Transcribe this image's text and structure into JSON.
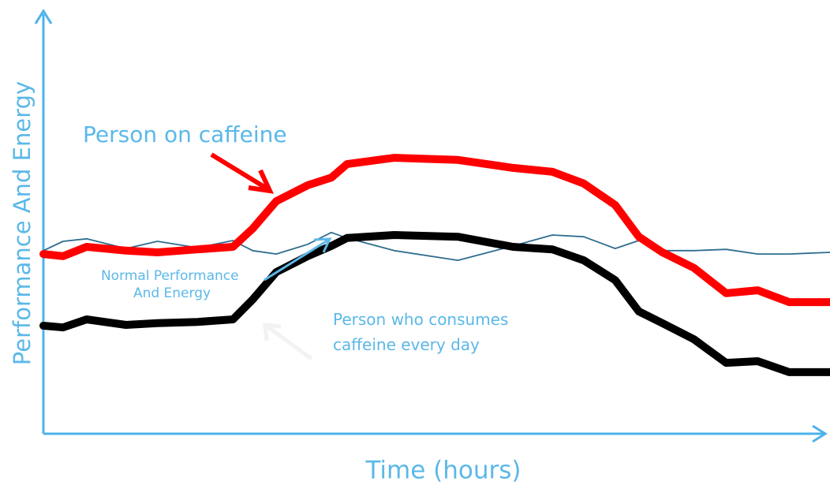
{
  "chart_data": {
    "type": "line",
    "xlabel": "Time (hours)",
    "ylabel": "Performance And Energy",
    "xlim": [
      0,
      100
    ],
    "ylim": [
      0,
      100
    ],
    "x": [
      0,
      2.5,
      5.5,
      10.5,
      14.5,
      19.6,
      24.1,
      26.6,
      29.6,
      33.6,
      36.6,
      38.6,
      44.6,
      52.7,
      59.7,
      64.7,
      68.7,
      72.7,
      75.7,
      78.7,
      82.7,
      86.8,
      90.8,
      94.8,
      100
    ],
    "series": [
      {
        "color": "#2f6d8f",
        "values": [
          43.4,
          45.6,
          46.2,
          43.9,
          45.6,
          44.1,
          45.8,
          43.4,
          42.6,
          44.9,
          47.7,
          46.4,
          43.4,
          41.1,
          44.5,
          47.1,
          46.7,
          43.9,
          45.8,
          43.4,
          43.4,
          43.7,
          42.6,
          42.6,
          43.0
        ]
      },
      {
        "color": "#ff0000",
        "values": [
          42.6,
          42.1,
          44.3,
          43.4,
          43.0,
          43.7,
          44.3,
          48.6,
          55.1,
          58.9,
          60.7,
          63.9,
          65.4,
          64.9,
          63.0,
          62.1,
          59.3,
          54.2,
          46.7,
          43.0,
          39.3,
          33.3,
          34.0,
          31.2,
          31.2
        ]
      },
      {
        "color": "#000000",
        "values": [
          25.6,
          25.2,
          27.1,
          25.8,
          26.2,
          26.5,
          27.1,
          31.8,
          38.3,
          42.1,
          44.5,
          46.4,
          47.1,
          46.7,
          44.3,
          43.7,
          41.1,
          36.4,
          29.0,
          26.2,
          22.4,
          16.8,
          17.2,
          14.6,
          14.6
        ]
      }
    ],
    "annotations": [
      {
        "text": "Person on caffeine"
      },
      {
        "text": [
          "Normal Performance",
          "And Energy"
        ]
      },
      {
        "text": [
          "Person who consumes",
          "caffeine every day"
        ]
      }
    ]
  }
}
